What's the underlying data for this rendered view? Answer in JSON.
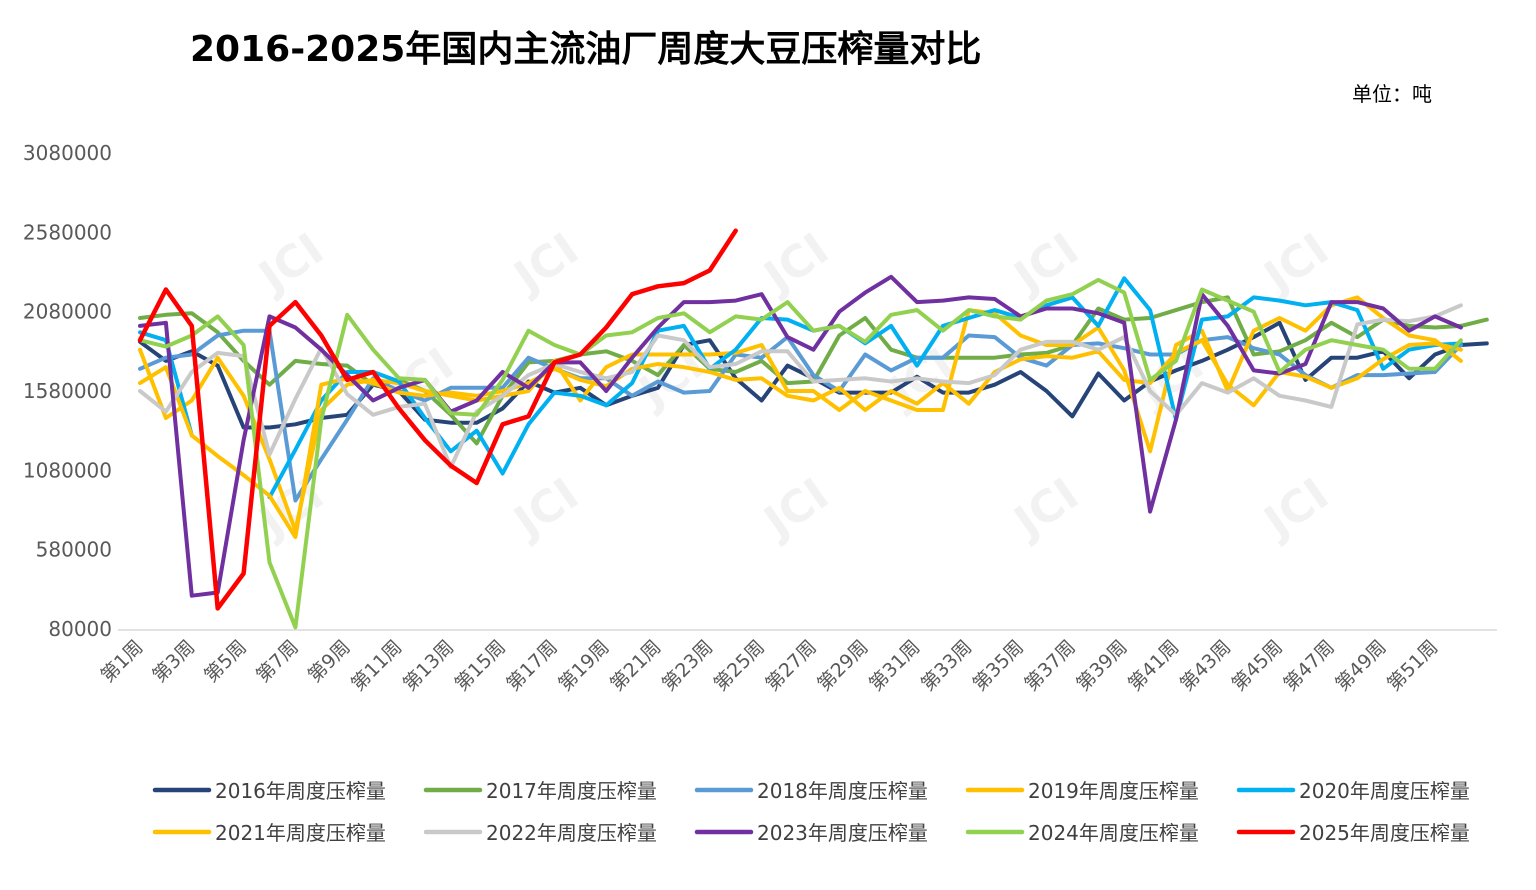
{
  "chart_data": {
    "type": "line",
    "title": "2016-2025年国内主流油厂周度大豆压榨量对比",
    "unit_label": "单位：吨",
    "xlabel": "",
    "ylabel": "",
    "ylim": [
      80000,
      3080000
    ],
    "yticks": [
      "80000",
      "580000",
      "1080000",
      "1580000",
      "2080000",
      "2580000",
      "3080000"
    ],
    "xtick_labels": [
      "第1周",
      "第3周",
      "第5周",
      "第7周",
      "第9周",
      "第11周",
      "第13周",
      "第15周",
      "第17周",
      "第19周",
      "第21周",
      "第23周",
      "第25周",
      "第27周",
      "第29周",
      "第31周",
      "第33周",
      "第35周",
      "第37周",
      "第39周",
      "第41周",
      "第43周",
      "第45周",
      "第47周",
      "第49周",
      "第51周"
    ],
    "grid": false,
    "legend_position": "bottom",
    "series": [
      {
        "name": "2016年周度压榨量",
        "color": "#264478",
        "values": [
          1890000,
          1770000,
          1830000,
          1740000,
          1350000,
          1350000,
          1370000,
          1410000,
          1430000,
          1620000,
          1580000,
          1400000,
          1380000,
          1380000,
          1470000,
          1640000,
          1570000,
          1600000,
          1490000,
          1550000,
          1600000,
          1870000,
          1900000,
          1660000,
          1520000,
          1740000,
          1660000,
          1570000,
          1570000,
          1570000,
          1670000,
          1570000,
          1570000,
          1620000,
          1700000,
          1580000,
          1420000,
          1690000,
          1520000,
          1640000,
          1710000,
          1770000,
          1840000,
          1920000,
          2010000,
          1650000,
          1790000,
          1790000,
          1830000,
          1660000,
          1810000,
          1870000,
          1880000
        ]
      },
      {
        "name": "2017年周度压榨量",
        "color": "#70AD47",
        "values": [
          2040000,
          2060000,
          2070000,
          1950000,
          1770000,
          1620000,
          1770000,
          1750000,
          1740000,
          1620000,
          1650000,
          1580000,
          1430000,
          1250000,
          1550000,
          1760000,
          1770000,
          1810000,
          1830000,
          1770000,
          1680000,
          1870000,
          1720000,
          1700000,
          1770000,
          1630000,
          1640000,
          1930000,
          2040000,
          1840000,
          1790000,
          1790000,
          1790000,
          1790000,
          1810000,
          1820000,
          1870000,
          2100000,
          2030000,
          2040000,
          2090000,
          2140000,
          2170000,
          1810000,
          1830000,
          1900000,
          2010000,
          1920000,
          2030000,
          1990000,
          1980000,
          1990000,
          2030000
        ]
      },
      {
        "name": "2018年周度压榨量",
        "color": "#5B9BD5",
        "values": [
          1720000,
          1790000,
          1810000,
          1930000,
          1960000,
          1960000,
          890000,
          1150000,
          1400000,
          1660000,
          1580000,
          1520000,
          1600000,
          1600000,
          1600000,
          1790000,
          1720000,
          1660000,
          1660000,
          1550000,
          1640000,
          1570000,
          1580000,
          1810000,
          1790000,
          1920000,
          1680000,
          1580000,
          1810000,
          1710000,
          1790000,
          1790000,
          1930000,
          1920000,
          1790000,
          1740000,
          1870000,
          1880000,
          1850000,
          1810000,
          1810000,
          1900000,
          1920000,
          1850000,
          1810000,
          1680000,
          1600000,
          1680000,
          1680000,
          1690000,
          1700000,
          1870000
        ]
      },
      {
        "name": "2019年周度压榨量",
        "color": "#FFC000",
        "values": [
          1840000,
          1410000,
          1520000,
          1790000,
          1550000,
          1150000,
          700000,
          1460000,
          1620000,
          1650000,
          1630000,
          1580000,
          1550000,
          1520000,
          1550000,
          1580000,
          1770000,
          1520000,
          1730000,
          1810000,
          1810000,
          1810000,
          1810000,
          1820000,
          1870000,
          1580000,
          1580000,
          1460000,
          1580000,
          1520000,
          1460000,
          1460000,
          2090000,
          2070000,
          1930000,
          1870000,
          1870000,
          1980000,
          1710000,
          1200000,
          1870000,
          1960000,
          1580000,
          1960000,
          2040000,
          1960000,
          2120000,
          2170000,
          2040000,
          1930000,
          1900000,
          1770000
        ]
      },
      {
        "name": "2020年周度压榨量",
        "color": "#00B0F0",
        "values": [
          1950000,
          1900000,
          1300000,
          null,
          null,
          910000,
          1210000,
          1520000,
          1700000,
          1700000,
          1640000,
          1410000,
          1200000,
          1330000,
          1060000,
          1370000,
          1570000,
          1550000,
          1490000,
          1630000,
          1960000,
          1990000,
          1720000,
          1840000,
          2040000,
          2030000,
          1960000,
          1990000,
          1880000,
          1990000,
          1740000,
          1990000,
          2040000,
          2090000,
          2040000,
          2120000,
          2170000,
          1990000,
          2290000,
          2090000,
          1400000,
          2030000,
          2050000,
          2170000,
          2150000,
          2120000,
          2140000,
          2090000,
          1720000,
          1840000,
          1870000,
          1880000
        ]
      },
      {
        "name": "2021年周度压榨量",
        "color": "#FFC000",
        "values": [
          1630000,
          1730000,
          1300000,
          1170000,
          1050000,
          920000,
          660000,
          1620000,
          1660000,
          1630000,
          1570000,
          1550000,
          1570000,
          1550000,
          1580000,
          1630000,
          1720000,
          1650000,
          1610000,
          1720000,
          1750000,
          1730000,
          1700000,
          1650000,
          1660000,
          1550000,
          1520000,
          1600000,
          1460000,
          1580000,
          1500000,
          1630000,
          1500000,
          1700000,
          1780000,
          1800000,
          1790000,
          1830000,
          1650000,
          1630000,
          1820000,
          1900000,
          1620000,
          1490000,
          1700000,
          1670000,
          1600000,
          1660000,
          1780000,
          1870000,
          1880000,
          1840000
        ]
      },
      {
        "name": "2022年周度压榨量",
        "color": "#C9C9C9",
        "values": [
          1580000,
          1450000,
          1700000,
          1820000,
          1800000,
          1180000,
          1530000,
          1850000,
          1560000,
          1430000,
          1480000,
          1500000,
          1100000,
          1450000,
          1550000,
          1680000,
          1750000,
          1700000,
          1660000,
          1700000,
          1930000,
          1900000,
          1730000,
          1750000,
          1830000,
          1830000,
          1640000,
          1650000,
          1660000,
          1640000,
          1660000,
          1640000,
          1630000,
          1680000,
          1840000,
          1890000,
          1890000,
          1840000,
          1920000,
          1580000,
          1430000,
          1630000,
          1570000,
          1660000,
          1550000,
          1520000,
          1480000,
          2000000,
          2030000,
          2020000,
          2050000,
          2120000
        ]
      },
      {
        "name": "2023年周度压榨量",
        "color": "#7030A0",
        "values": [
          1990000,
          2010000,
          290000,
          310000,
          1270000,
          2050000,
          1980000,
          1840000,
          1680000,
          1520000,
          1600000,
          1650000,
          1450000,
          1520000,
          1700000,
          1600000,
          1760000,
          1760000,
          1580000,
          1790000,
          1980000,
          2140000,
          2140000,
          2150000,
          2190000,
          1920000,
          1840000,
          2080000,
          2200000,
          2300000,
          2140000,
          2150000,
          2170000,
          2160000,
          2050000,
          2100000,
          2100000,
          2070000,
          2010000,
          820000,
          1400000,
          2190000,
          1990000,
          1710000,
          1690000,
          1750000,
          2140000,
          2140000,
          2100000,
          1960000,
          2050000,
          1980000
        ]
      },
      {
        "name": "2024年周度压榨量",
        "color": "#92D050",
        "values": [
          1900000,
          1860000,
          1930000,
          2050000,
          1870000,
          500000,
          90000,
          1400000,
          2060000,
          1840000,
          1660000,
          1650000,
          1440000,
          1430000,
          1650000,
          1960000,
          1870000,
          1810000,
          1930000,
          1950000,
          2040000,
          2070000,
          1950000,
          2050000,
          2030000,
          2140000,
          1960000,
          1990000,
          1890000,
          2060000,
          2090000,
          1960000,
          2090000,
          2050000,
          2030000,
          2150000,
          2190000,
          2280000,
          2200000,
          1650000,
          1770000,
          2220000,
          2150000,
          2080000,
          1700000,
          1840000,
          1900000,
          1870000,
          1840000,
          1720000,
          1720000,
          1900000
        ]
      },
      {
        "name": "2025年周度压榨量",
        "color": "#FF0000",
        "values": [
          1900000,
          2220000,
          1990000,
          210000,
          430000,
          1990000,
          2140000,
          1930000,
          1650000,
          1700000,
          1470000,
          1270000,
          1110000,
          1000000,
          1370000,
          1420000,
          1760000,
          1810000,
          1980000,
          2190000,
          2240000,
          2260000,
          2340000,
          2590000
        ]
      }
    ]
  }
}
